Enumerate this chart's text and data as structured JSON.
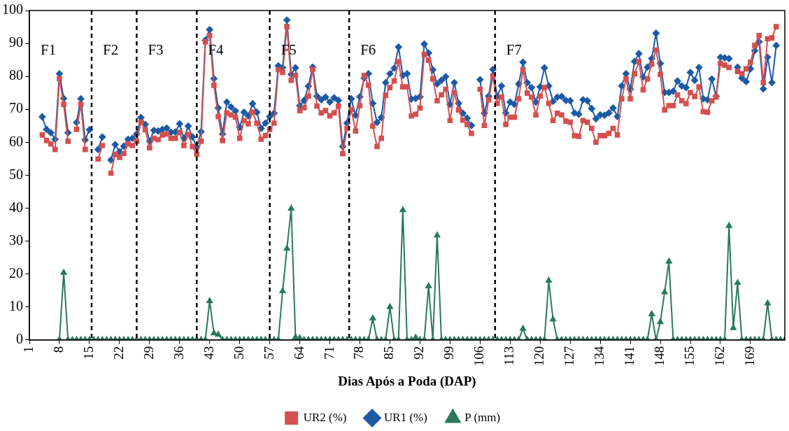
{
  "chart_data": {
    "type": "line",
    "xlabel": "Dias Após a Poda (DAP)",
    "xlim": [
      1,
      177
    ],
    "xticks": [
      1,
      8,
      15,
      22,
      29,
      36,
      43,
      50,
      57,
      64,
      71,
      78,
      85,
      92,
      99,
      106,
      113,
      120,
      127,
      134,
      141,
      148,
      155,
      162,
      169
    ],
    "ylim": [
      0,
      100
    ],
    "yticks": [
      0,
      10,
      20,
      30,
      40,
      50,
      60,
      70,
      80,
      90,
      100
    ],
    "legend": "bottom",
    "ref_lines": [
      {
        "axis": "x",
        "value": 15.5,
        "color": "#000000",
        "line_style": "dashed"
      },
      {
        "axis": "x",
        "value": 26,
        "color": "#000000",
        "line_style": "dashed"
      },
      {
        "axis": "x",
        "value": 40,
        "color": "#000000",
        "line_style": "dashed"
      },
      {
        "axis": "x",
        "value": 57,
        "color": "#000000",
        "line_style": "dashed"
      },
      {
        "axis": "x",
        "value": 75.5,
        "color": "#000000",
        "line_style": "dashed"
      },
      {
        "axis": "x",
        "value": 109.5,
        "color": "#000000",
        "line_style": "dashed"
      }
    ],
    "annotations": [
      "F1",
      "F2",
      "F3",
      "F4",
      "F5",
      "F6",
      "F7"
    ],
    "series": [
      {
        "name": "UR2 (%)",
        "color": "#d4504f",
        "marker": "square",
        "x": [
          4,
          5,
          6,
          7,
          8,
          9,
          10,
          11,
          12,
          13,
          14,
          15,
          16,
          17,
          18,
          19,
          20,
          21,
          22,
          23,
          24,
          25,
          26,
          27,
          28,
          29,
          30,
          31,
          32,
          33,
          34,
          35,
          36,
          37,
          38,
          39,
          40,
          41,
          42,
          43,
          44,
          45,
          46,
          47,
          48,
          49,
          50,
          51,
          52,
          53,
          54,
          55,
          56,
          57,
          58,
          59,
          60,
          61,
          62,
          63,
          64,
          65,
          66,
          67,
          68,
          69,
          70,
          71,
          72,
          73,
          74,
          75,
          76,
          77,
          78,
          79,
          80,
          81,
          82,
          83,
          84,
          85,
          86,
          87,
          88,
          89,
          90,
          91,
          92,
          93,
          94,
          95,
          96,
          97,
          98,
          99,
          100,
          101,
          102,
          103,
          104,
          105,
          106,
          107,
          108,
          109,
          110,
          111,
          112,
          113,
          114,
          115,
          116,
          117,
          118,
          119,
          120,
          121,
          122,
          123,
          124,
          125,
          126,
          127,
          128,
          129,
          130,
          131,
          132,
          133,
          134,
          135,
          136,
          137,
          138,
          139,
          140,
          141,
          142,
          143,
          144,
          145,
          146,
          147,
          148,
          149,
          150,
          151,
          152,
          153,
          154,
          155,
          156,
          157,
          158,
          159,
          160,
          161,
          162,
          163,
          164,
          165,
          166,
          167,
          168,
          169,
          170,
          171,
          172,
          173,
          174,
          175
        ],
        "values": [
          62.2,
          60.5,
          59.5,
          57.8,
          79.3,
          71.5,
          60.3,
          null,
          63.9,
          71.5,
          57.8,
          null,
          null,
          54.9,
          59.0,
          null,
          50.6,
          56.3,
          55.4,
          56.6,
          59.5,
          59.0,
          60.3,
          66.1,
          63.8,
          58.3,
          61.2,
          60.8,
          62.2,
          62.5,
          61.2,
          61.2,
          63.0,
          59.0,
          62.4,
          58.7,
          56.3,
          60.3,
          90.5,
          92.4,
          77.3,
          67.8,
          60.5,
          68.9,
          68.3,
          67.6,
          61.2,
          66.6,
          65.6,
          69.1,
          65.8,
          60.9,
          62.0,
          63.9,
          65.8,
          82.0,
          81.2,
          95.1,
          78.8,
          80.3,
          69.6,
          70.5,
          74.0,
          82.1,
          71.0,
          68.9,
          69.6,
          68.0,
          68.9,
          71.0,
          56.5,
          64.2,
          70.0,
          63.4,
          71.1,
          80.3,
          77.3,
          64.9,
          58.7,
          61.2,
          74.2,
          76.6,
          78.6,
          84.5,
          76.8,
          76.8,
          68.0,
          68.5,
          70.4,
          86.7,
          84.9,
          79.2,
          72.6,
          74.4,
          76.1,
          66.6,
          75.1,
          69.8,
          66.7,
          65.4,
          62.7,
          null,
          76.1,
          65.1,
          72.9,
          80.1,
          71.8,
          73.7,
          65.4,
          67.6,
          67.6,
          73.2,
          82.0,
          74.9,
          73.7,
          68.3,
          74.0,
          76.6,
          71.8,
          66.6,
          68.8,
          68.3,
          66.4,
          66.1,
          62.0,
          61.8,
          66.6,
          66.1,
          64.2,
          60.0,
          62.0,
          62.0,
          62.7,
          64.2,
          62.2,
          73.2,
          79.2,
          73.2,
          80.8,
          84.5,
          75.9,
          79.2,
          83.7,
          88.0,
          80.6,
          69.8,
          71.1,
          71.1,
          74.4,
          72.6,
          71.7,
          75.1,
          73.9,
          76.8,
          69.3,
          69.1,
          72.6,
          73.7,
          83.9,
          83.4,
          82.7,
          null,
          81.5,
          80.8,
          82.3,
          84.3,
          89.4,
          92.4,
          78.1,
          91.4,
          91.7,
          95.1
        ]
      },
      {
        "name": "UR1 (%)",
        "color": "#1c5aa6",
        "marker": "diamond",
        "x": [
          4,
          5,
          6,
          7,
          8,
          9,
          10,
          11,
          12,
          13,
          14,
          15,
          16,
          17,
          18,
          19,
          20,
          21,
          22,
          23,
          24,
          25,
          26,
          27,
          28,
          29,
          30,
          31,
          32,
          33,
          34,
          35,
          36,
          37,
          38,
          39,
          40,
          41,
          42,
          43,
          44,
          45,
          46,
          47,
          48,
          49,
          50,
          51,
          52,
          53,
          54,
          55,
          56,
          57,
          58,
          59,
          60,
          61,
          62,
          63,
          64,
          65,
          66,
          67,
          68,
          69,
          70,
          71,
          72,
          73,
          74,
          75,
          76,
          77,
          78,
          79,
          80,
          81,
          82,
          83,
          84,
          85,
          86,
          87,
          88,
          89,
          90,
          91,
          92,
          93,
          94,
          95,
          96,
          97,
          98,
          99,
          100,
          101,
          102,
          103,
          104,
          105,
          106,
          107,
          108,
          109,
          110,
          111,
          112,
          113,
          114,
          115,
          116,
          117,
          118,
          119,
          120,
          121,
          122,
          123,
          124,
          125,
          126,
          127,
          128,
          129,
          130,
          131,
          132,
          133,
          134,
          135,
          136,
          137,
          138,
          139,
          140,
          141,
          142,
          143,
          144,
          145,
          146,
          147,
          148,
          149,
          150,
          151,
          152,
          153,
          154,
          155,
          156,
          157,
          158,
          159,
          160,
          161,
          162,
          163,
          164,
          165,
          166,
          167,
          168,
          169,
          170,
          171,
          172,
          173,
          174,
          175
        ],
        "values": [
          67.7,
          63.9,
          62.9,
          60.9,
          80.8,
          73.3,
          62.9,
          null,
          66.0,
          73.2,
          60.7,
          63.8,
          null,
          57.8,
          61.6,
          null,
          54.6,
          59.3,
          57.1,
          58.8,
          60.9,
          61.2,
          62.5,
          67.5,
          65.4,
          60.3,
          63.6,
          63.4,
          63.9,
          64.3,
          63.0,
          63.1,
          65.6,
          61.2,
          64.9,
          61.6,
          58.5,
          63.2,
          91.0,
          94.2,
          79.3,
          70.4,
          62.5,
          72.2,
          70.7,
          69.5,
          64.5,
          69.1,
          68.0,
          71.7,
          69.1,
          64.2,
          65.8,
          67.8,
          68.8,
          83.2,
          82.7,
          97.1,
          80.6,
          82.6,
          71.1,
          72.7,
          77.0,
          82.8,
          74.0,
          72.9,
          73.7,
          72.2,
          73.5,
          72.7,
          58.7,
          65.8,
          73.2,
          68.2,
          73.8,
          79.5,
          80.8,
          71.8,
          66.0,
          67.5,
          78.1,
          80.8,
          82.5,
          88.9,
          80.3,
          80.8,
          73.1,
          73.3,
          73.8,
          89.8,
          87.1,
          82.0,
          77.7,
          78.8,
          79.9,
          71.5,
          78.1,
          71.8,
          68.8,
          67.3,
          65.1,
          null,
          79.0,
          68.8,
          74.0,
          82.1,
          73.9,
          77.1,
          68.9,
          72.2,
          71.5,
          77.7,
          84.3,
          78.1,
          76.6,
          72.2,
          76.8,
          82.6,
          77.1,
          72.4,
          73.7,
          73.9,
          72.7,
          72.6,
          68.9,
          68.5,
          72.9,
          72.6,
          70.2,
          67.1,
          68.3,
          68.2,
          68.9,
          70.4,
          67.8,
          77.1,
          80.8,
          76.1,
          84.5,
          86.9,
          79.8,
          82.8,
          85.4,
          93.1,
          83.9,
          75.1,
          75.1,
          75.5,
          78.6,
          77.1,
          76.6,
          81.2,
          78.8,
          82.7,
          73.2,
          72.9,
          79.2,
          74.0,
          85.8,
          85.6,
          85.4,
          null,
          82.8,
          79.5,
          78.4,
          82.3,
          87.8,
          90.5,
          76.2,
          85.8,
          78.1,
          89.4
        ]
      },
      {
        "name": "P (mm)",
        "color": "#2a7a5a",
        "marker": "triangle",
        "x": [
          8,
          9,
          10,
          11,
          12,
          13,
          14,
          15,
          16,
          17,
          18,
          19,
          20,
          21,
          22,
          23,
          24,
          25,
          26,
          27,
          28,
          29,
          30,
          31,
          32,
          33,
          34,
          35,
          36,
          37,
          38,
          39,
          40,
          41,
          42,
          43,
          44,
          45,
          46,
          47,
          48,
          49,
          50,
          51,
          52,
          53,
          54,
          55,
          56,
          57,
          58,
          59,
          60,
          61,
          62,
          63,
          64,
          65,
          66,
          67,
          68,
          69,
          70,
          71,
          72,
          73,
          74,
          75,
          76,
          77,
          78,
          79,
          80,
          81,
          82,
          83,
          84,
          85,
          86,
          87,
          88,
          89,
          90,
          91,
          92,
          93,
          94,
          95,
          96,
          97,
          98,
          99,
          100,
          101,
          102,
          103,
          104,
          105,
          106,
          107,
          108,
          109,
          110,
          111,
          112,
          113,
          114,
          115,
          116,
          117,
          118,
          119,
          120,
          121,
          122,
          123,
          124,
          125,
          126,
          127,
          128,
          129,
          130,
          131,
          132,
          133,
          134,
          135,
          136,
          137,
          138,
          139,
          140,
          141,
          142,
          143,
          144,
          145,
          146,
          147,
          148,
          149,
          150,
          151,
          152,
          153,
          154,
          155,
          156,
          157,
          158,
          159,
          160,
          161,
          162,
          163,
          164,
          165,
          166,
          167,
          168,
          169,
          170,
          171,
          172,
          173,
          174,
          175,
          176,
          177
        ],
        "values": [
          0,
          20.4,
          0,
          0,
          0,
          0,
          0,
          0,
          0,
          0,
          0,
          0,
          0,
          0,
          0,
          0,
          0,
          0,
          0,
          0,
          0,
          0,
          0,
          0,
          0,
          0,
          0,
          0,
          0,
          0,
          0,
          0,
          0,
          0,
          0,
          11.8,
          2.0,
          1.6,
          0,
          0,
          0,
          0,
          0,
          0,
          0,
          0,
          0,
          0,
          0,
          0,
          0,
          0,
          14.8,
          27.7,
          39.9,
          0.8,
          0.5,
          0,
          0,
          0,
          0,
          0,
          0,
          0,
          0,
          0,
          0,
          0,
          0,
          0,
          0,
          0,
          0,
          6.5,
          0,
          0,
          0,
          10.0,
          0,
          0,
          39.4,
          0,
          0,
          0.7,
          0,
          0,
          16.3,
          0,
          31.7,
          0,
          0,
          0,
          0,
          0,
          0,
          0,
          0,
          0,
          0,
          0,
          0,
          0,
          0,
          0,
          0,
          0,
          0,
          0,
          3.4,
          0,
          0,
          0,
          0,
          0,
          18.0,
          6.2,
          0,
          0,
          0,
          0,
          0,
          0,
          0,
          0,
          0,
          0,
          0,
          0,
          0,
          0,
          0,
          0,
          0,
          0,
          0,
          0,
          0,
          0,
          7.8,
          0,
          5.4,
          14.5,
          23.8,
          0,
          0,
          0,
          0,
          0,
          0,
          0,
          0,
          0,
          0,
          0,
          0,
          0,
          34.6,
          3.6,
          17.3,
          0,
          0,
          0,
          0,
          0,
          0,
          11.1,
          0,
          0,
          0,
          0
        ]
      }
    ]
  }
}
